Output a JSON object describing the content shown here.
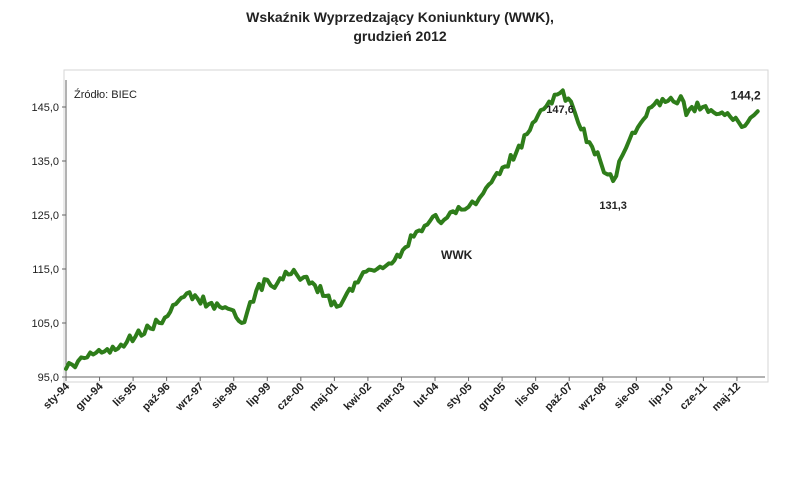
{
  "chart_data": {
    "type": "line",
    "title": "Wskaźnik Wyprzedzający Koniunktury (WWK),",
    "subtitle": "grudzień 2012",
    "source": "Źródło: BIEC",
    "series_label": "WWK",
    "color": "#2e7d1a",
    "ylim": [
      95.0,
      150.0
    ],
    "yticks": [
      "95,0",
      "105,0",
      "115,0",
      "125,0",
      "135,0",
      "145,0"
    ],
    "ytick_values": [
      95,
      105,
      115,
      125,
      135,
      145
    ],
    "xticks": [
      "sty-94",
      "gru-94",
      "lis-95",
      "paź-96",
      "wrz-97",
      "sie-98",
      "lip-99",
      "cze-00",
      "maj-01",
      "kwi-02",
      "mar-03",
      "lut-04",
      "sty-05",
      "gru-05",
      "lis-06",
      "paź-07",
      "wrz-08",
      "sie-09",
      "lip-10",
      "cze-11",
      "maj-12"
    ],
    "grid": false,
    "annotations": [
      {
        "label": "147,6",
        "x": 2007.5,
        "y": 147.6
      },
      {
        "label": "131,3",
        "x": 2008.95,
        "y": 131.3
      },
      {
        "label": "144,2",
        "x": 2012.9,
        "y": 144.2
      }
    ],
    "series": [
      {
        "name": "WWK",
        "x": [
          1994.0,
          1994.5,
          1994.9,
          1995.2,
          1995.5,
          1995.9,
          1996.3,
          1996.7,
          1997.0,
          1997.3,
          1997.6,
          1997.9,
          1998.2,
          1998.5,
          1998.8,
          1998.95,
          1999.2,
          1999.5,
          1999.7,
          2000.0,
          2000.3,
          2000.5,
          2000.8,
          2001.1,
          2001.4,
          2001.6,
          2001.9,
          2002.2,
          2002.5,
          2002.9,
          2003.2,
          2003.5,
          2003.8,
          2004.1,
          2004.25,
          2004.5,
          2004.8,
          2005.0,
          2005.2,
          2005.4,
          2005.7,
          2006.0,
          2006.3,
          2006.6,
          2006.9,
          2007.2,
          2007.5,
          2007.8,
          2008.0,
          2008.3,
          2008.6,
          2008.8,
          2008.95,
          2009.2,
          2009.4,
          2009.7,
          2010.0,
          2010.3,
          2010.6,
          2010.8,
          2010.95,
          2011.1,
          2011.4,
          2011.7,
          2012.0,
          2012.3,
          2012.55,
          2012.7,
          2012.9
        ],
        "values": [
          96.5,
          98.5,
          100.0,
          99.5,
          101.0,
          102.5,
          104.0,
          106.0,
          108.5,
          110.5,
          109.5,
          108.5,
          108.0,
          107.5,
          105.0,
          107.0,
          111.0,
          113.0,
          111.5,
          114.5,
          114.0,
          113.5,
          112.0,
          110.0,
          108.0,
          109.5,
          112.5,
          114.5,
          115.0,
          116.0,
          118.5,
          121.0,
          123.0,
          125.0,
          123.5,
          125.5,
          126.0,
          126.5,
          127.0,
          129.0,
          132.0,
          134.0,
          136.5,
          140.0,
          143.5,
          146.0,
          147.6,
          146.0,
          142.0,
          138.5,
          135.0,
          132.5,
          131.3,
          136.0,
          139.0,
          142.0,
          145.0,
          146.5,
          146.0,
          147.0,
          143.5,
          145.0,
          145.0,
          144.0,
          143.5,
          143.0,
          141.5,
          143.0,
          144.2
        ]
      }
    ]
  }
}
